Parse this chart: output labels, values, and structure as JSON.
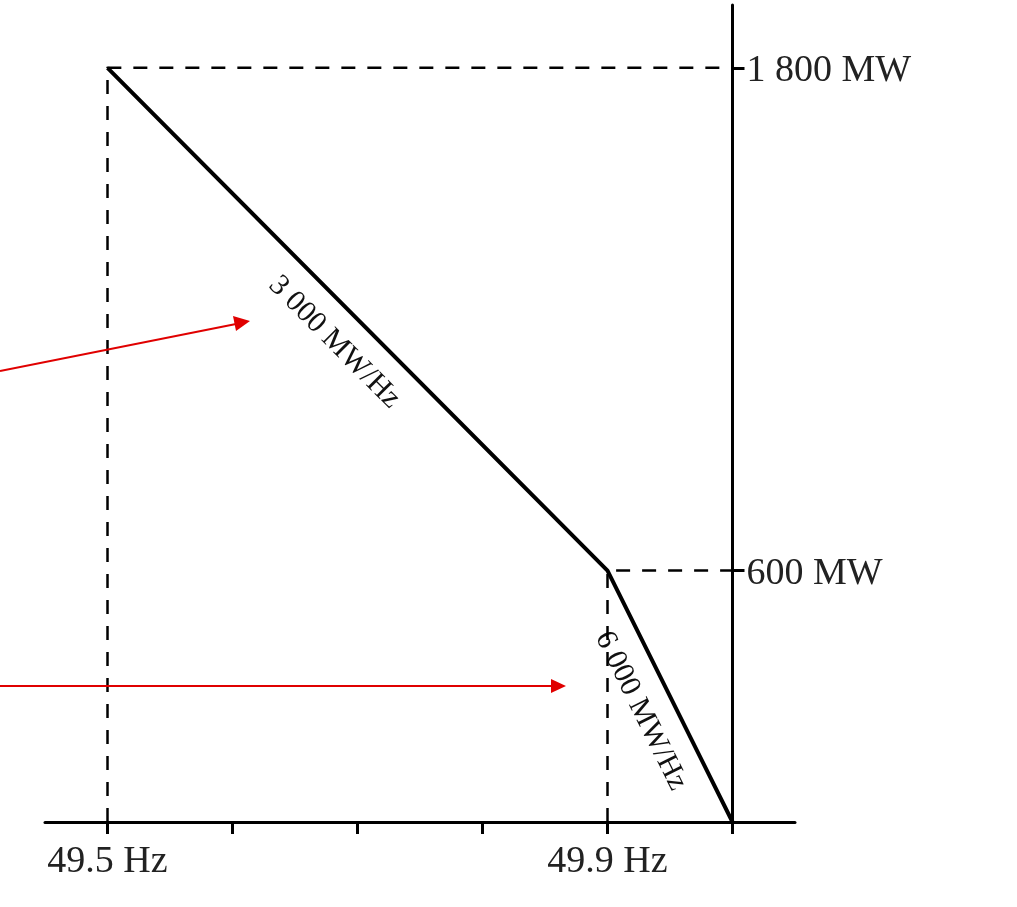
{
  "chart_data": {
    "type": "line",
    "marker": "none",
    "line_style": "solid",
    "grid": false,
    "series": [
      {
        "color": "#000000",
        "x": [
          49.5,
          49.9,
          50
        ],
        "values": [
          1800,
          600,
          0
        ]
      },
      {
        "type": "line",
        "line_style": "dashed",
        "color": "#000000",
        "x": [
          49.5,
          49.5,
          50
        ],
        "values": [
          0,
          1800,
          1800
        ]
      },
      {
        "type": "line",
        "line_style": "dashed",
        "color": "#000000",
        "x": [
          49.9,
          49.9,
          50
        ],
        "values": [
          0,
          600,
          600
        ]
      }
    ],
    "xlim": [
      49.45,
      50.05
    ],
    "xticks": [
      {
        "value": 49.5,
        "label": "49.5 Hz"
      },
      {
        "value": 49.6,
        "label": null
      },
      {
        "value": 49.7,
        "label": null
      },
      {
        "value": 49.8,
        "label": null
      },
      {
        "value": 49.9,
        "label": "49.9 Hz"
      },
      {
        "value": 50,
        "label": null
      }
    ],
    "ylim": [
      0,
      1950
    ],
    "yticks": [
      {
        "value": 600,
        "label": "600 MW"
      },
      {
        "value": 1800,
        "label": "1 800 MW"
      }
    ],
    "annotations": [
      {
        "text": "3 000 MW/Hz",
        "x": 49.7,
        "y": 1200
      },
      {
        "text": "6 000 MW/Hz",
        "x": 49.95,
        "y": 300
      }
    ]
  }
}
